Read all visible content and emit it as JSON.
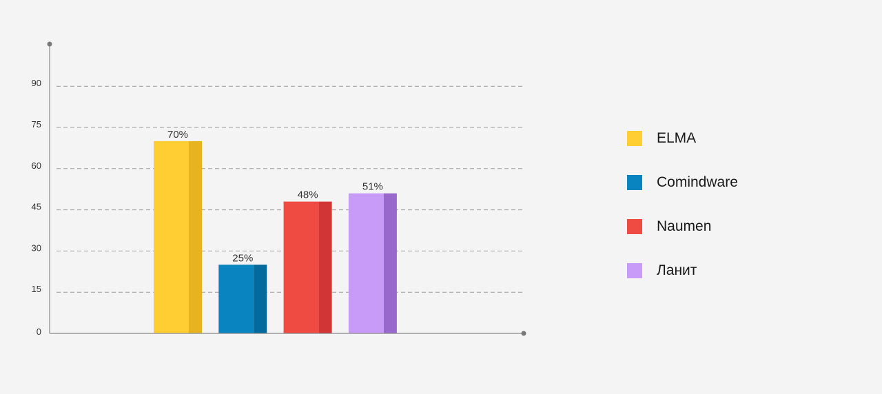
{
  "chart_data": {
    "type": "bar",
    "categories": [
      "ELMA",
      "Comindware",
      "Naumen",
      "Ланит"
    ],
    "values": [
      70,
      25,
      48,
      51
    ],
    "data_labels": [
      "70%",
      "25%",
      "48%",
      "51%"
    ],
    "colors": [
      "#ffce33",
      "#0a84c0",
      "#ef4b43",
      "#c99bf9"
    ],
    "side_colors": [
      "#e8b321",
      "#046a9e",
      "#d23535",
      "#9868cc"
    ],
    "ylim": [
      0,
      100
    ],
    "yticks": [
      0,
      15,
      30,
      45,
      60,
      75,
      90
    ],
    "ytick_labels": [
      "0",
      "15",
      "30",
      "45",
      "60",
      "75",
      "90"
    ],
    "grid": true,
    "legend_position": "right"
  },
  "legend": {
    "items": [
      {
        "label": "ELMA",
        "color": "#ffce33"
      },
      {
        "label": "Comindware",
        "color": "#0a84c0"
      },
      {
        "label": "Naumen",
        "color": "#ef4b43"
      },
      {
        "label": "Ланит",
        "color": "#c99bf9"
      }
    ]
  }
}
